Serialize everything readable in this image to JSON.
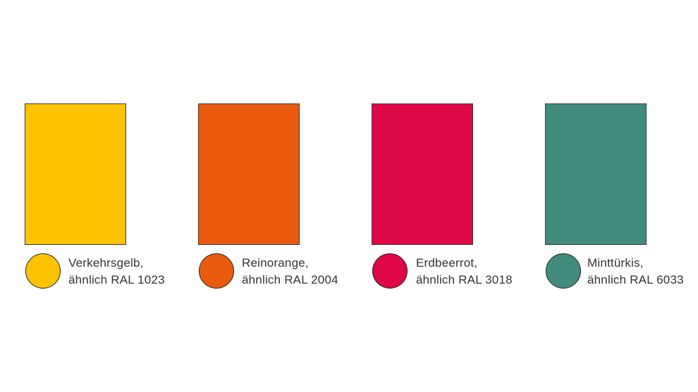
{
  "swatches": [
    {
      "color": "#FBC300",
      "name": "Verkehrsgelb,",
      "ral": "ähnlich RAL 1023"
    },
    {
      "color": "#E95A0E",
      "name": "Reinorange,",
      "ral": "ähnlich RAL 2004"
    },
    {
      "color": "#DD0845",
      "name": "Erdbeerrot,",
      "ral": "ähnlich RAL 3018"
    },
    {
      "color": "#428C7D",
      "name": "Minttürkis,",
      "ral": "ähnlich RAL 6033"
    }
  ]
}
